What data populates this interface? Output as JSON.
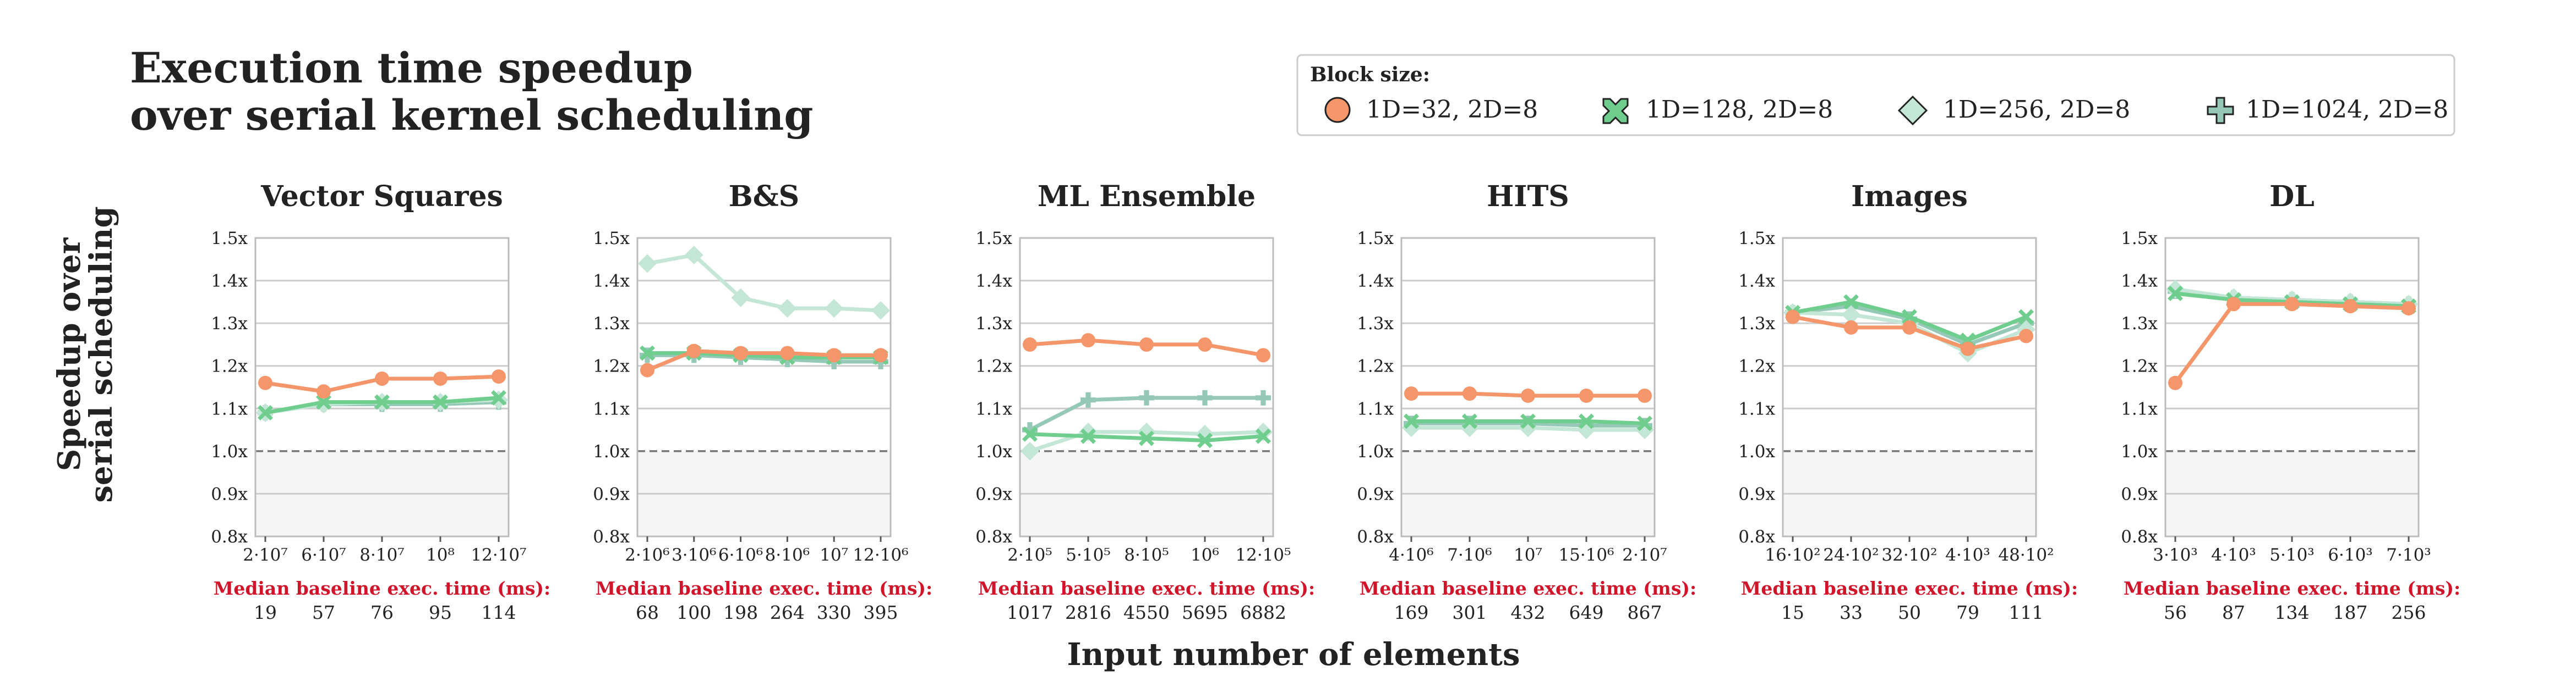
{
  "figure": {
    "title_line1": "Execution time speedup",
    "title_line2": "over serial kernel scheduling",
    "ylabel_line1": "Speedup over",
    "ylabel_line2": "serial scheduling",
    "xlabel": "Input number of elements",
    "baseline_label": "Median baseline exec. time (ms):"
  },
  "legend": {
    "title": "Block size:",
    "placement": "top-right",
    "entries": [
      {
        "label": "1D=32, 2D=8",
        "marker": "circle-icon",
        "color": "#f4956a"
      },
      {
        "label": "1D=128, 2D=8",
        "marker": "x-icon",
        "color": "#6fce8e"
      },
      {
        "label": "1D=256, 2D=8",
        "marker": "diamond-icon",
        "color": "#c3e6d6"
      },
      {
        "label": "1D=1024, 2D=8",
        "marker": "plus-icon",
        "color": "#96c8b7"
      }
    ]
  },
  "colors": {
    "series": [
      "#f4956a",
      "#6fce8e",
      "#c3e6d6",
      "#96c8b7"
    ],
    "baseline_text": "#d0142a",
    "grid": "#cccccc",
    "reference_line": "#777777",
    "below_one_fill": "#f5f5f5"
  },
  "y_ticks": [
    "0.8x",
    "0.9x",
    "1.0x",
    "1.1x",
    "1.2x",
    "1.3x",
    "1.4x",
    "1.5x"
  ],
  "chart_data": [
    {
      "type": "line",
      "title": "Vector Squares",
      "ylim": [
        0.8,
        1.5
      ],
      "grid": true,
      "reference_y": 1.0,
      "categories": [
        "2·10⁷",
        "6·10⁷",
        "8·10⁷",
        "10⁸",
        "12·10⁷"
      ],
      "baseline_ms": [
        "19",
        "57",
        "76",
        "95",
        "114"
      ],
      "series": [
        {
          "name": "1D=32, 2D=8",
          "values": [
            1.16,
            1.14,
            1.17,
            1.17,
            1.175
          ]
        },
        {
          "name": "1D=128, 2D=8",
          "values": [
            1.09,
            1.115,
            1.115,
            1.115,
            1.125
          ]
        },
        {
          "name": "1D=256, 2D=8",
          "values": [
            1.09,
            1.11,
            1.115,
            1.115,
            1.12
          ]
        },
        {
          "name": "1D=1024, 2D=8",
          "values": [
            1.09,
            1.11,
            1.11,
            1.11,
            1.115
          ]
        }
      ]
    },
    {
      "type": "line",
      "title": "B&S",
      "ylim": [
        0.8,
        1.5
      ],
      "grid": true,
      "reference_y": 1.0,
      "categories": [
        "2·10⁶",
        "3·10⁶",
        "6·10⁶",
        "8·10⁶",
        "10⁷",
        "12·10⁶"
      ],
      "baseline_ms": [
        "68",
        "100",
        "198",
        "264",
        "330",
        "395"
      ],
      "series": [
        {
          "name": "1D=32, 2D=8",
          "values": [
            1.19,
            1.235,
            1.23,
            1.23,
            1.225,
            1.225
          ]
        },
        {
          "name": "1D=128, 2D=8",
          "values": [
            1.23,
            1.23,
            1.225,
            1.22,
            1.22,
            1.22
          ]
        },
        {
          "name": "1D=256, 2D=8",
          "values": [
            1.44,
            1.46,
            1.36,
            1.335,
            1.335,
            1.33
          ]
        },
        {
          "name": "1D=1024, 2D=8",
          "values": [
            1.225,
            1.225,
            1.22,
            1.215,
            1.21,
            1.21
          ]
        }
      ]
    },
    {
      "type": "line",
      "title": "ML Ensemble",
      "ylim": [
        0.8,
        1.5
      ],
      "grid": true,
      "reference_y": 1.0,
      "categories": [
        "2·10⁵",
        "5·10⁵",
        "8·10⁵",
        "10⁶",
        "12·10⁵"
      ],
      "baseline_ms": [
        "1017",
        "2816",
        "4550",
        "5695",
        "6882"
      ],
      "series": [
        {
          "name": "1D=32, 2D=8",
          "values": [
            1.25,
            1.26,
            1.25,
            1.25,
            1.225
          ]
        },
        {
          "name": "1D=128, 2D=8",
          "values": [
            1.04,
            1.035,
            1.03,
            1.025,
            1.035
          ]
        },
        {
          "name": "1D=256, 2D=8",
          "values": [
            1.0,
            1.045,
            1.045,
            1.04,
            1.045
          ]
        },
        {
          "name": "1D=1024, 2D=8",
          "values": [
            1.05,
            1.12,
            1.125,
            1.125,
            1.125
          ]
        }
      ]
    },
    {
      "type": "line",
      "title": "HITS",
      "ylim": [
        0.8,
        1.5
      ],
      "grid": true,
      "reference_y": 1.0,
      "categories": [
        "4·10⁶",
        "7·10⁶",
        "10⁷",
        "15·10⁶",
        "2·10⁷"
      ],
      "baseline_ms": [
        "169",
        "301",
        "432",
        "649",
        "867"
      ],
      "series": [
        {
          "name": "1D=32, 2D=8",
          "values": [
            1.135,
            1.135,
            1.13,
            1.13,
            1.13
          ]
        },
        {
          "name": "1D=128, 2D=8",
          "values": [
            1.07,
            1.07,
            1.07,
            1.07,
            1.065
          ]
        },
        {
          "name": "1D=256, 2D=8",
          "values": [
            1.055,
            1.055,
            1.055,
            1.05,
            1.05
          ]
        },
        {
          "name": "1D=1024, 2D=8",
          "values": [
            1.065,
            1.065,
            1.065,
            1.06,
            1.06
          ]
        }
      ]
    },
    {
      "type": "line",
      "title": "Images",
      "ylim": [
        0.8,
        1.5
      ],
      "grid": true,
      "reference_y": 1.0,
      "categories": [
        "16·10²",
        "24·10²",
        "32·10²",
        "4·10³",
        "48·10²"
      ],
      "baseline_ms": [
        "15",
        "33",
        "50",
        "79",
        "111"
      ],
      "series": [
        {
          "name": "1D=32, 2D=8",
          "values": [
            1.315,
            1.29,
            1.29,
            1.24,
            1.27
          ]
        },
        {
          "name": "1D=128, 2D=8",
          "values": [
            1.325,
            1.35,
            1.315,
            1.26,
            1.315
          ]
        },
        {
          "name": "1D=256, 2D=8",
          "values": [
            1.325,
            1.32,
            1.3,
            1.23,
            1.285
          ]
        },
        {
          "name": "1D=1024, 2D=8",
          "values": [
            1.325,
            1.34,
            1.31,
            1.25,
            1.3
          ]
        }
      ]
    },
    {
      "type": "line",
      "title": "DL",
      "ylim": [
        0.8,
        1.5
      ],
      "grid": true,
      "reference_y": 1.0,
      "categories": [
        "3·10³",
        "4·10³",
        "5·10³",
        "6·10³",
        "7·10³"
      ],
      "baseline_ms": [
        "56",
        "87",
        "134",
        "187",
        "256"
      ],
      "series": [
        {
          "name": "1D=32, 2D=8",
          "values": [
            1.16,
            1.345,
            1.345,
            1.34,
            1.335
          ]
        },
        {
          "name": "1D=128, 2D=8",
          "values": [
            1.37,
            1.355,
            1.35,
            1.345,
            1.34
          ]
        },
        {
          "name": "1D=256, 2D=8",
          "values": [
            1.38,
            1.36,
            1.355,
            1.35,
            1.345
          ]
        },
        {
          "name": "1D=1024, 2D=8",
          "values": [
            1.375,
            1.36,
            1.355,
            1.35,
            1.345
          ]
        }
      ]
    }
  ]
}
